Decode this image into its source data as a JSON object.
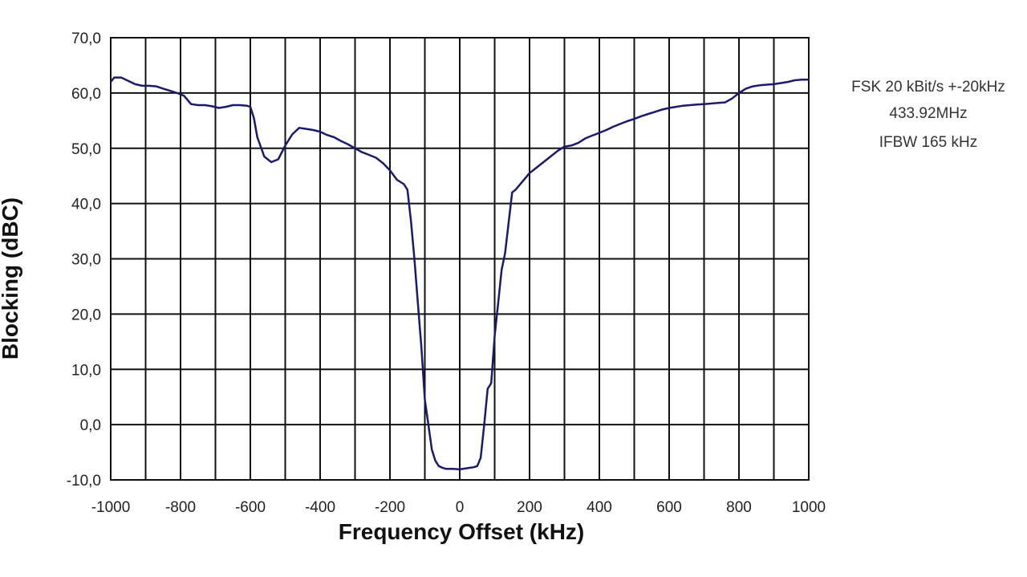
{
  "chart_data": {
    "type": "line",
    "title": "",
    "xlabel": "Frequency Offset (kHz)",
    "ylabel": "Blocking (dBC)",
    "xlim": [
      -1000,
      1000
    ],
    "ylim": [
      -10,
      70
    ],
    "x_ticks": [
      -1000,
      -800,
      -600,
      -400,
      -200,
      0,
      200,
      400,
      600,
      800,
      1000
    ],
    "x_tick_labels": [
      "-1000",
      "-800",
      "-600",
      "-400",
      "-200",
      "0",
      "200",
      "400",
      "600",
      "800",
      "1000"
    ],
    "y_ticks": [
      -10,
      0,
      10,
      20,
      30,
      40,
      50,
      60,
      70
    ],
    "y_tick_labels": [
      "-10,0",
      "0,0",
      "10,0",
      "20,0",
      "30,0",
      "40,0",
      "50,0",
      "60,0",
      "70,0"
    ],
    "grid": true,
    "vertical_grid_step": 100,
    "series": [
      {
        "color": "#1a1a6e",
        "x": [
          -1000,
          -990,
          -970,
          -950,
          -930,
          -910,
          -890,
          -870,
          -850,
          -830,
          -810,
          -790,
          -770,
          -750,
          -730,
          -710,
          -690,
          -670,
          -650,
          -630,
          -610,
          -600,
          -590,
          -580,
          -560,
          -540,
          -520,
          -500,
          -480,
          -460,
          -440,
          -420,
          -400,
          -380,
          -360,
          -340,
          -320,
          -300,
          -280,
          -260,
          -240,
          -220,
          -200,
          -180,
          -160,
          -150,
          -140,
          -130,
          -120,
          -110,
          -100,
          -90,
          -80,
          -70,
          -60,
          -50,
          -40,
          -20,
          0,
          20,
          40,
          50,
          60,
          70,
          80,
          90,
          100,
          110,
          120,
          130,
          140,
          150,
          160,
          180,
          200,
          220,
          240,
          260,
          280,
          300,
          320,
          340,
          360,
          380,
          400,
          420,
          440,
          460,
          480,
          500,
          520,
          540,
          560,
          580,
          600,
          620,
          640,
          660,
          680,
          700,
          720,
          740,
          760,
          780,
          800,
          820,
          840,
          860,
          880,
          900,
          920,
          940,
          960,
          980,
          1000
        ],
        "y": [
          62.0,
          62.8,
          62.8,
          62.2,
          61.6,
          61.3,
          61.3,
          61.2,
          60.8,
          60.4,
          60.0,
          59.5,
          58.0,
          57.8,
          57.8,
          57.6,
          57.3,
          57.5,
          57.8,
          57.8,
          57.7,
          57.5,
          55.5,
          52.0,
          48.5,
          47.5,
          48.0,
          50.5,
          52.5,
          53.7,
          53.5,
          53.3,
          53.0,
          52.4,
          52.0,
          51.3,
          50.7,
          50.0,
          49.3,
          48.8,
          48.3,
          47.3,
          46.0,
          44.3,
          43.5,
          42.5,
          37.0,
          30.0,
          22.0,
          14.0,
          4.5,
          0.0,
          -4.5,
          -6.5,
          -7.5,
          -7.8,
          -8.0,
          -8.0,
          -8.1,
          -7.9,
          -7.7,
          -7.5,
          -6.0,
          0.0,
          6.5,
          7.5,
          16.0,
          22.0,
          28.0,
          31.0,
          36.5,
          42.0,
          42.5,
          44.0,
          45.5,
          46.5,
          47.5,
          48.5,
          49.5,
          50.3,
          50.5,
          51.0,
          51.8,
          52.3,
          52.8,
          53.3,
          53.9,
          54.4,
          54.9,
          55.3,
          55.8,
          56.2,
          56.6,
          57.0,
          57.3,
          57.5,
          57.7,
          57.8,
          57.9,
          58.0,
          58.1,
          58.2,
          58.3,
          59.0,
          60.0,
          60.8,
          61.2,
          61.4,
          61.5,
          61.6,
          61.8,
          62.0,
          62.3,
          62.4,
          62.4
        ]
      }
    ],
    "annotation": [
      "FSK 20  kBit/s +-20kHz",
      "433.92MHz",
      "IFBW 165 kHz"
    ],
    "legend": "none"
  }
}
